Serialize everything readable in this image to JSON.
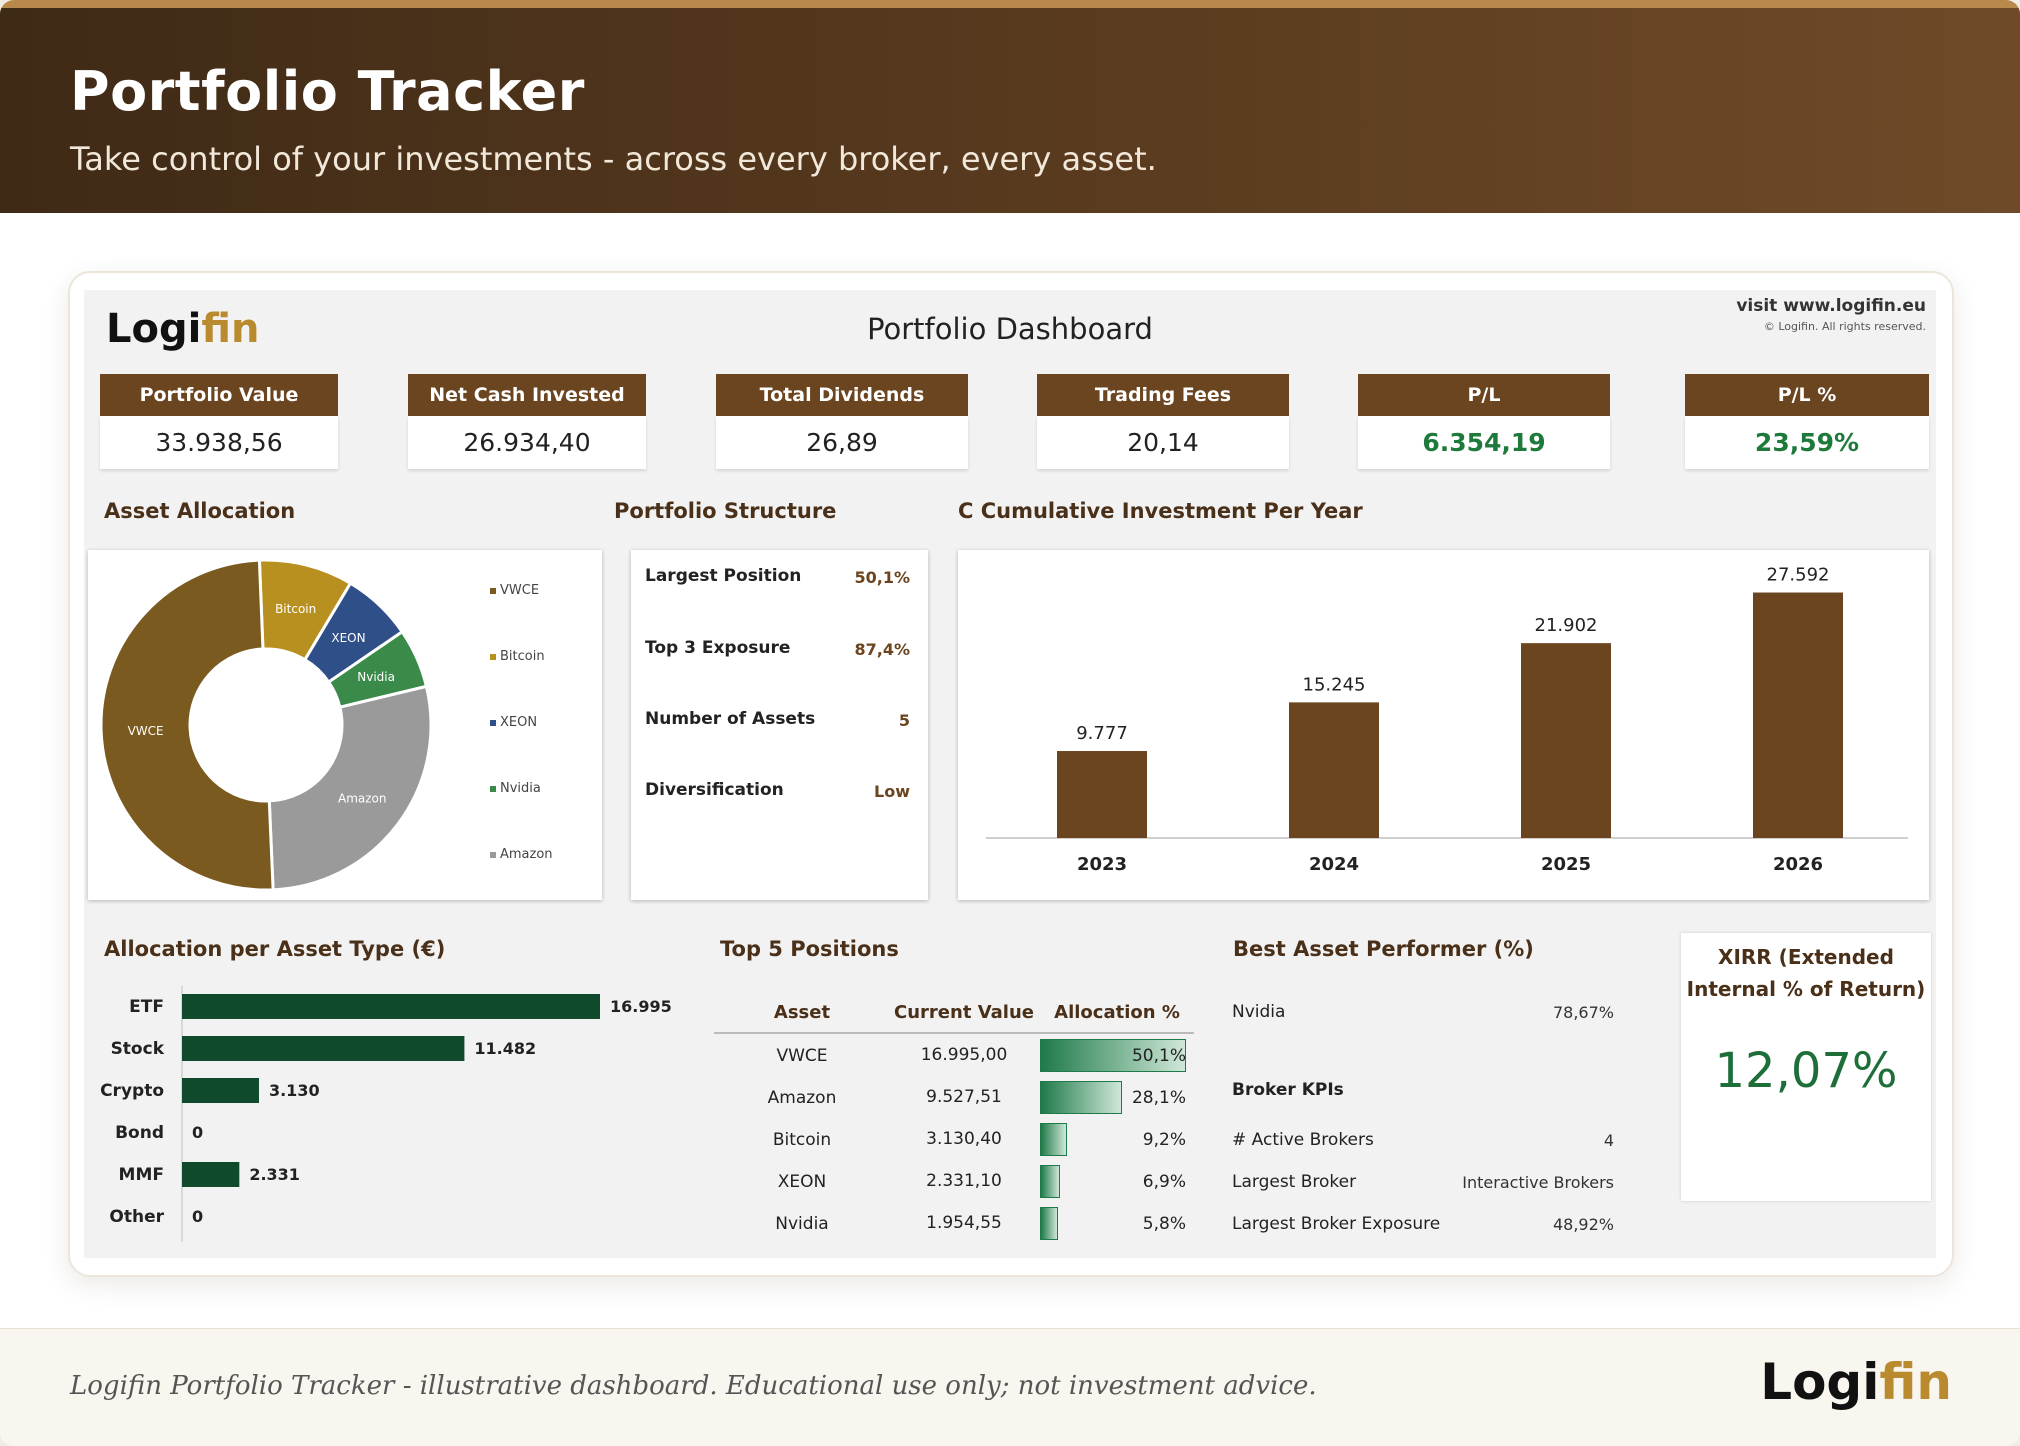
{
  "banner": {
    "title": "Portfolio Tracker",
    "subtitle": "Take control of your investments - across every broker, every asset."
  },
  "brand": {
    "logo_main": "Logi",
    "logo_accent": "fin"
  },
  "sheet": {
    "title": "Portfolio Dashboard",
    "visit": "visit www.logifin.eu",
    "rights": "© Logifin. All rights reserved."
  },
  "kpis": [
    {
      "label": "Portfolio Value",
      "value": "33.938,56"
    },
    {
      "label": "Net Cash Invested",
      "value": "26.934,40"
    },
    {
      "label": "Total Dividends",
      "value": "26,89"
    },
    {
      "label": "Trading Fees",
      "value": "20,14"
    },
    {
      "label": "P/L",
      "value": "6.354,19"
    },
    {
      "label": "P/L %",
      "value": "23,59%"
    }
  ],
  "sections": {
    "asset_allocation": "Asset Allocation",
    "portfolio_structure": "Portfolio Structure",
    "cumulative": "C Cumulative Investment Per Year",
    "allocation_type": "Allocation per Asset Type (€)",
    "top5": "Top 5 Positions",
    "best": "Best Asset Performer (%)",
    "broker": "Broker KPIs"
  },
  "colors": {
    "brown": "#6b4420",
    "vwce": "#7a5a1f",
    "bitcoin": "#b8901f",
    "xeon": "#2f4f88",
    "nvidia": "#3a8a4a",
    "amazon": "#9a9a9a",
    "dark_green": "#0f4a2c"
  },
  "chart_data": [
    {
      "type": "pie",
      "categories": [
        "VWCE",
        "Bitcoin",
        "XEON",
        "Nvidia",
        "Amazon"
      ],
      "values": [
        50.1,
        9.2,
        6.9,
        5.8,
        28.1
      ],
      "legend": [
        "VWCE",
        "Bitcoin",
        "XEON",
        "Nvidia",
        "Amazon"
      ],
      "legend_position": "right"
    },
    {
      "type": "bar",
      "categories": [
        "2023",
        "2024",
        "2025",
        "2026"
      ],
      "values": [
        9777,
        15245,
        21902,
        27592
      ],
      "labels": [
        "9.777",
        "15.245",
        "21.902",
        "27.592"
      ],
      "ylim": [
        0,
        29000
      ]
    },
    {
      "type": "bar",
      "orientation": "horizontal",
      "categories": [
        "ETF",
        "Stock",
        "Crypto",
        "Bond",
        "MMF",
        "Other"
      ],
      "values": [
        16995,
        11482,
        3130,
        0,
        2331,
        0
      ],
      "labels": [
        "16.995",
        "11.482",
        "3.130",
        "0",
        "2.331",
        "0"
      ]
    }
  ],
  "structure": [
    {
      "label": "Largest Position",
      "value": "50,1%"
    },
    {
      "label": "Top 3 Exposure",
      "value": "87,4%"
    },
    {
      "label": "Number of Assets",
      "value": "5"
    },
    {
      "label": "Diversification",
      "value": "Low"
    }
  ],
  "top5": {
    "headers": [
      "Asset",
      "Current Value",
      "Allocation %"
    ],
    "rows": [
      {
        "asset": "VWCE",
        "value": "16.995,00",
        "alloc": "50,1%",
        "pct": 50.1
      },
      {
        "asset": "Amazon",
        "value": "9.527,51",
        "alloc": "28,1%",
        "pct": 28.1
      },
      {
        "asset": "Bitcoin",
        "value": "3.130,40",
        "alloc": "9,2%",
        "pct": 9.2
      },
      {
        "asset": "XEON",
        "value": "2.331,10",
        "alloc": "6,9%",
        "pct": 6.9
      },
      {
        "asset": "Nvidia",
        "value": "1.954,55",
        "alloc": "5,8%",
        "pct": 5.8
      }
    ]
  },
  "best": {
    "asset": "Nvidia",
    "value": "78,67%"
  },
  "broker": [
    {
      "label": "# Active Brokers",
      "value": "4"
    },
    {
      "label": "Largest Broker",
      "value": "Interactive Brokers"
    },
    {
      "label": "Largest Broker Exposure",
      "value": "48,92%"
    }
  ],
  "xirr": {
    "title": "XIRR (Extended Internal % of Return)",
    "value": "12,07%"
  },
  "footer": {
    "text": "Logifin Portfolio Tracker - illustrative dashboard. Educational use only; not investment advice."
  }
}
